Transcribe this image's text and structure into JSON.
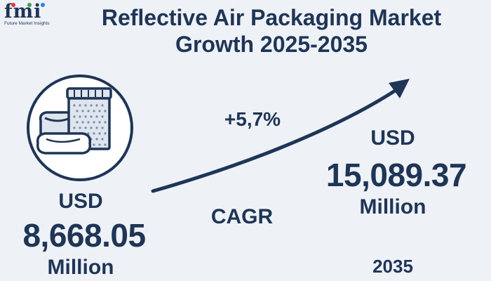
{
  "logo": {
    "mark": "fmi",
    "tagline": "Future Market Insights",
    "dot_colors": [
      "#e53935",
      "#43a047",
      "#1e88e5"
    ]
  },
  "title": {
    "line1": "Reflective Air Packaging Market",
    "line2": "Growth 2025-2035"
  },
  "icon": {
    "name": "packaging-icon"
  },
  "start": {
    "currency": "USD",
    "value": "8,668.05",
    "unit": "Million"
  },
  "growth": {
    "cagr_value": "+5,7%",
    "cagr_label": "CAGR"
  },
  "end": {
    "currency": "USD",
    "value": "15,089.37",
    "unit": "Million",
    "year": "2035"
  },
  "colors": {
    "primary": "#1f3556",
    "background": "#eef1f6",
    "icon_fill": "#dfe5ee"
  }
}
